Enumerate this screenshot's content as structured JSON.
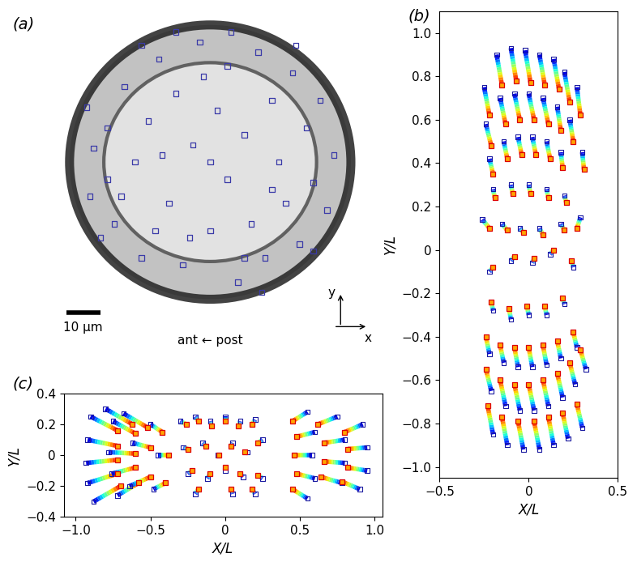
{
  "chart_data": [
    {
      "type": "image",
      "panel_label": "(a)",
      "scale_bar_um": 10,
      "scale_bar_label": "10 μm",
      "direction_label": "ant ← post",
      "axis_x_label": "x",
      "axis_y_label": "y",
      "marker": "s",
      "color": "#3a3aa8",
      "points_um": [
        [
          -30,
          10
        ],
        [
          -30,
          -5
        ],
        [
          -28,
          -18
        ],
        [
          -25,
          22
        ],
        [
          -22,
          0
        ],
        [
          -20,
          -28
        ],
        [
          -18,
          12
        ],
        [
          -15,
          30
        ],
        [
          -12,
          -12
        ],
        [
          -10,
          20
        ],
        [
          -8,
          -30
        ],
        [
          -5,
          5
        ],
        [
          -3,
          35
        ],
        [
          0,
          -20
        ],
        [
          2,
          15
        ],
        [
          5,
          -5
        ],
        [
          5,
          28
        ],
        [
          8,
          -35
        ],
        [
          10,
          8
        ],
        [
          12,
          -18
        ],
        [
          14,
          32
        ],
        [
          16,
          -28
        ],
        [
          18,
          18
        ],
        [
          20,
          0
        ],
        [
          22,
          -12
        ],
        [
          24,
          26
        ],
        [
          26,
          -24
        ],
        [
          28,
          10
        ],
        [
          30,
          -6
        ],
        [
          32,
          18
        ],
        [
          34,
          -14
        ],
        [
          -34,
          4
        ],
        [
          -35,
          -10
        ],
        [
          -26,
          -10
        ],
        [
          -16,
          -20
        ],
        [
          -6,
          -22
        ],
        [
          -2,
          25
        ],
        [
          6,
          38
        ],
        [
          -10,
          38
        ],
        [
          15,
          -38
        ],
        [
          -20,
          34
        ],
        [
          25,
          34
        ],
        [
          36,
          2
        ],
        [
          -36,
          16
        ],
        [
          -32,
          -22
        ],
        [
          30,
          -26
        ],
        [
          0,
          0
        ],
        [
          10,
          -28
        ],
        [
          -14,
          2
        ],
        [
          18,
          -8
        ]
      ]
    },
    {
      "type": "scatter",
      "panel_label": "(b)",
      "x_label": "X/L",
      "y_label": "Y/L",
      "xlim": [
        -0.5,
        0.5
      ],
      "ylim": [
        -1.05,
        1.1
      ],
      "xticks": [
        {
          "value": -0.5,
          "label": "−0.5"
        },
        {
          "value": 0,
          "label": "0"
        },
        {
          "value": 0.5,
          "label": "0.5"
        }
      ],
      "yticks": [
        {
          "value": -1.0,
          "label": "−1.0"
        },
        {
          "value": -0.8,
          "label": "−0.8"
        },
        {
          "value": -0.6,
          "label": "−0.6"
        },
        {
          "value": -0.4,
          "label": "−0.4"
        },
        {
          "value": -0.2,
          "label": "−0.2"
        },
        {
          "value": 0,
          "label": "0"
        },
        {
          "value": 0.2,
          "label": "0.2"
        },
        {
          "value": 0.4,
          "label": "0.4"
        },
        {
          "value": 0.6,
          "label": "0.6"
        },
        {
          "value": 0.8,
          "label": "0.8"
        },
        {
          "value": 1.0,
          "label": "1.0"
        }
      ],
      "marker": "s",
      "tracks_blue_red": [
        [
          -0.25,
          0.75,
          -0.22,
          0.62
        ],
        [
          -0.18,
          0.9,
          -0.15,
          0.76
        ],
        [
          -0.1,
          0.93,
          -0.07,
          0.78
        ],
        [
          -0.02,
          0.92,
          0.01,
          0.77
        ],
        [
          0.06,
          0.9,
          0.09,
          0.76
        ],
        [
          0.14,
          0.88,
          0.17,
          0.74
        ],
        [
          0.2,
          0.82,
          0.23,
          0.68
        ],
        [
          0.27,
          0.75,
          0.29,
          0.62
        ],
        [
          -0.24,
          0.58,
          -0.21,
          0.48
        ],
        [
          -0.16,
          0.7,
          -0.13,
          0.58
        ],
        [
          -0.08,
          0.72,
          -0.05,
          0.6
        ],
        [
          0.0,
          0.72,
          0.03,
          0.6
        ],
        [
          0.08,
          0.7,
          0.11,
          0.58
        ],
        [
          0.16,
          0.66,
          0.18,
          0.55
        ],
        [
          0.23,
          0.6,
          0.25,
          0.5
        ],
        [
          0.3,
          0.45,
          0.31,
          0.37
        ],
        [
          -0.22,
          0.42,
          -0.2,
          0.35
        ],
        [
          -0.14,
          0.5,
          -0.12,
          0.42
        ],
        [
          -0.06,
          0.52,
          -0.04,
          0.44
        ],
        [
          0.02,
          0.52,
          0.04,
          0.44
        ],
        [
          0.1,
          0.5,
          0.12,
          0.42
        ],
        [
          0.18,
          0.45,
          0.19,
          0.38
        ],
        [
          -0.2,
          0.28,
          -0.19,
          0.24
        ],
        [
          -0.1,
          0.3,
          -0.09,
          0.26
        ],
        [
          0.0,
          0.3,
          0.01,
          0.26
        ],
        [
          0.1,
          0.28,
          0.11,
          0.24
        ],
        [
          0.2,
          0.25,
          0.21,
          0.22
        ],
        [
          -0.26,
          0.14,
          -0.22,
          0.1
        ],
        [
          -0.15,
          0.12,
          -0.12,
          0.09
        ],
        [
          -0.05,
          0.1,
          -0.03,
          0.08
        ],
        [
          0.06,
          0.1,
          0.08,
          0.07
        ],
        [
          0.18,
          0.12,
          0.2,
          0.09
        ],
        [
          0.29,
          0.15,
          0.27,
          0.1
        ],
        [
          -0.22,
          -0.1,
          -0.2,
          -0.08
        ],
        [
          -0.1,
          -0.05,
          -0.08,
          -0.03
        ],
        [
          0.02,
          -0.06,
          0.03,
          -0.04
        ],
        [
          0.12,
          -0.02,
          0.14,
          0.0
        ],
        [
          0.25,
          -0.08,
          0.24,
          -0.05
        ],
        [
          -0.2,
          -0.28,
          -0.21,
          -0.24
        ],
        [
          -0.1,
          -0.32,
          -0.11,
          -0.27
        ],
        [
          0.0,
          -0.3,
          -0.01,
          -0.26
        ],
        [
          0.1,
          -0.3,
          0.09,
          -0.26
        ],
        [
          0.2,
          -0.25,
          0.19,
          -0.22
        ],
        [
          -0.22,
          -0.48,
          -0.24,
          -0.4
        ],
        [
          -0.14,
          -0.52,
          -0.16,
          -0.44
        ],
        [
          -0.06,
          -0.54,
          -0.08,
          -0.45
        ],
        [
          0.02,
          -0.54,
          0.0,
          -0.45
        ],
        [
          0.1,
          -0.53,
          0.08,
          -0.44
        ],
        [
          0.18,
          -0.5,
          0.16,
          -0.42
        ],
        [
          0.27,
          -0.45,
          0.25,
          -0.38
        ],
        [
          -0.21,
          -0.65,
          -0.24,
          -0.55
        ],
        [
          -0.13,
          -0.72,
          -0.16,
          -0.6
        ],
        [
          -0.05,
          -0.74,
          -0.08,
          -0.62
        ],
        [
          0.03,
          -0.74,
          0.0,
          -0.62
        ],
        [
          0.11,
          -0.72,
          0.08,
          -0.6
        ],
        [
          0.19,
          -0.68,
          0.16,
          -0.57
        ],
        [
          0.26,
          -0.62,
          0.23,
          -0.52
        ],
        [
          0.32,
          -0.55,
          0.29,
          -0.46
        ],
        [
          -0.2,
          -0.85,
          -0.23,
          -0.72
        ],
        [
          -0.12,
          -0.9,
          -0.15,
          -0.77
        ],
        [
          -0.03,
          -0.92,
          -0.06,
          -0.79
        ],
        [
          0.06,
          -0.92,
          0.03,
          -0.79
        ],
        [
          0.14,
          -0.9,
          0.11,
          -0.77
        ],
        [
          0.22,
          -0.87,
          0.19,
          -0.75
        ],
        [
          0.3,
          -0.82,
          0.27,
          -0.71
        ]
      ]
    },
    {
      "type": "scatter",
      "panel_label": "(c)",
      "x_label": "X/L",
      "y_label": "Y/L",
      "xlim": [
        -1.08,
        1.05
      ],
      "ylim": [
        -0.4,
        0.4
      ],
      "xticks": [
        {
          "value": -1.0,
          "label": "−1.0"
        },
        {
          "value": -0.5,
          "label": "−0.5"
        },
        {
          "value": 0,
          "label": "0"
        },
        {
          "value": 0.5,
          "label": "0.5"
        },
        {
          "value": 1.0,
          "label": "1.0"
        }
      ],
      "yticks": [
        {
          "value": -0.4,
          "label": "−0.4"
        },
        {
          "value": -0.2,
          "label": "−0.2"
        },
        {
          "value": 0,
          "label": "0"
        },
        {
          "value": 0.2,
          "label": "0.2"
        },
        {
          "value": 0.4,
          "label": "0.4"
        }
      ],
      "marker": "s",
      "tracks_blue_red": [
        [
          -0.9,
          0.25,
          -0.72,
          0.16
        ],
        [
          -0.92,
          0.1,
          -0.72,
          0.06
        ],
        [
          -0.93,
          -0.05,
          -0.72,
          -0.03
        ],
        [
          -0.92,
          -0.18,
          -0.72,
          -0.12
        ],
        [
          -0.88,
          -0.3,
          -0.7,
          -0.2
        ],
        [
          -0.8,
          0.3,
          -0.62,
          0.2
        ],
        [
          -0.75,
          0.22,
          -0.6,
          0.14
        ],
        [
          -0.78,
          0.02,
          -0.6,
          0.01
        ],
        [
          -0.76,
          -0.12,
          -0.6,
          -0.08
        ],
        [
          -0.72,
          -0.26,
          -0.58,
          -0.18
        ],
        [
          -0.68,
          0.27,
          -0.52,
          0.18
        ],
        [
          -0.62,
          0.08,
          -0.5,
          0.05
        ],
        [
          -0.64,
          -0.2,
          -0.5,
          -0.14
        ],
        [
          -0.5,
          0.2,
          -0.42,
          0.15
        ],
        [
          -0.45,
          0.0,
          -0.38,
          0.0
        ],
        [
          -0.48,
          -0.22,
          -0.4,
          -0.18
        ],
        [
          -0.3,
          0.22,
          -0.26,
          0.2
        ],
        [
          -0.2,
          0.25,
          -0.18,
          0.22
        ],
        [
          -0.1,
          0.22,
          -0.09,
          0.19
        ],
        [
          0.0,
          0.25,
          0.0,
          0.22
        ],
        [
          0.1,
          0.22,
          0.09,
          0.19
        ],
        [
          0.2,
          0.23,
          0.18,
          0.2
        ],
        [
          -0.28,
          0.05,
          -0.25,
          0.04
        ],
        [
          -0.15,
          0.08,
          -0.13,
          0.06
        ],
        [
          -0.05,
          0.0,
          -0.04,
          0.0
        ],
        [
          0.05,
          0.08,
          0.04,
          0.06
        ],
        [
          0.15,
          0.02,
          0.13,
          0.02
        ],
        [
          0.25,
          0.1,
          0.22,
          0.08
        ],
        [
          -0.25,
          -0.12,
          -0.22,
          -0.1
        ],
        [
          -0.12,
          -0.15,
          -0.1,
          -0.12
        ],
        [
          0.0,
          -0.1,
          0.0,
          -0.08
        ],
        [
          0.12,
          -0.14,
          0.1,
          -0.12
        ],
        [
          0.25,
          -0.15,
          0.22,
          -0.13
        ],
        [
          -0.2,
          -0.25,
          -0.18,
          -0.22
        ],
        [
          0.05,
          -0.25,
          0.04,
          -0.22
        ],
        [
          0.2,
          -0.25,
          0.18,
          -0.22
        ],
        [
          0.55,
          0.28,
          0.45,
          0.22
        ],
        [
          0.6,
          0.15,
          0.48,
          0.12
        ],
        [
          0.58,
          0.0,
          0.46,
          0.0
        ],
        [
          0.6,
          -0.15,
          0.48,
          -0.12
        ],
        [
          0.55,
          -0.28,
          0.45,
          -0.22
        ],
        [
          0.75,
          0.25,
          0.62,
          0.2
        ],
        [
          0.8,
          0.1,
          0.66,
          0.08
        ],
        [
          0.8,
          -0.05,
          0.66,
          -0.04
        ],
        [
          0.78,
          -0.18,
          0.64,
          -0.14
        ],
        [
          0.92,
          0.2,
          0.8,
          0.15
        ],
        [
          0.95,
          0.05,
          0.82,
          0.04
        ],
        [
          0.95,
          -0.1,
          0.82,
          -0.08
        ],
        [
          0.9,
          -0.22,
          0.78,
          -0.17
        ]
      ]
    }
  ]
}
